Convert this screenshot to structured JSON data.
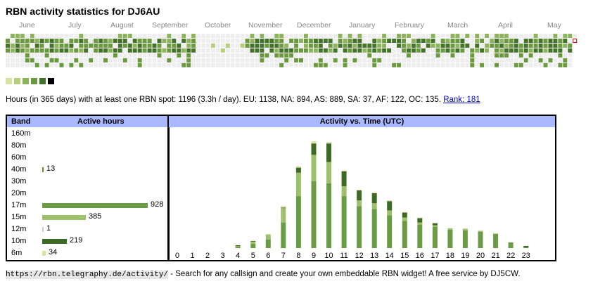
{
  "page": {
    "title": "RBN activity statistics for DJ6AU"
  },
  "heatmap": {
    "months": [
      "June",
      "July",
      "August",
      "September",
      "October",
      "November",
      "December",
      "January",
      "February",
      "March",
      "April",
      "May"
    ],
    "colors": [
      "#eeeeee",
      "#d8e3a0",
      "#b7cf7d",
      "#8db45c",
      "#6a993e",
      "#44742a",
      "#000000"
    ],
    "today_marker_color": "#cc0000"
  },
  "legend": {
    "colors": [
      "#d8e3a0",
      "#b7cf7d",
      "#8db45c",
      "#6a993e",
      "#44742a",
      "#000000"
    ]
  },
  "stats": {
    "text": "Hours (in 365 days) with at least one RBN spot: 1196 (3.3h / day). EU: 1138, NA: 894, AS: 889, SA: 37, AF: 122, OC: 135.",
    "rank_link": "Rank: 181"
  },
  "bands": {
    "header_band": "Band",
    "header_hours": "Active hours",
    "rows": [
      {
        "name": "160m",
        "hours": "",
        "color": ""
      },
      {
        "name": "80m",
        "hours": "",
        "color": ""
      },
      {
        "name": "60m",
        "hours": "",
        "color": ""
      },
      {
        "name": "40m",
        "hours": "13",
        "color": "#8c7a30"
      },
      {
        "name": "30m",
        "hours": "",
        "color": ""
      },
      {
        "name": "20m",
        "hours": "",
        "color": ""
      },
      {
        "name": "17m",
        "hours": "928",
        "color": "#6a9b45"
      },
      {
        "name": "15m",
        "hours": "385",
        "color": "#9ec06b"
      },
      {
        "name": "12m",
        "hours": "1",
        "color": "#cccccc"
      },
      {
        "name": "10m",
        "hours": "219",
        "color": "#3d6b25"
      },
      {
        "name": "6m",
        "hours": "34",
        "color": "#d8e3a0"
      }
    ],
    "max_hours": 928
  },
  "chart_data": {
    "type": "bar",
    "title": "Activity vs. Time (UTC)",
    "stacked": true,
    "categories": [
      "0",
      "1",
      "2",
      "3",
      "4",
      "5",
      "6",
      "7",
      "8",
      "9",
      "10",
      "11",
      "12",
      "13",
      "14",
      "15",
      "16",
      "17",
      "18",
      "19",
      "20",
      "21",
      "22",
      "23"
    ],
    "series": [
      {
        "name": "17m",
        "color": "#6a9b45",
        "values": [
          0,
          0,
          0,
          0,
          2,
          6,
          12,
          36,
          73,
          94,
          91,
          73,
          59,
          55,
          46,
          38,
          33,
          30,
          26,
          25,
          23,
          20,
          8,
          1
        ]
      },
      {
        "name": "15m",
        "color": "#9ec06b",
        "values": [
          0,
          0,
          0,
          0,
          1,
          3,
          7,
          20,
          33,
          37,
          30,
          14,
          8,
          8,
          7,
          5,
          3,
          2,
          2,
          2,
          1,
          0,
          0,
          0
        ]
      },
      {
        "name": "10m",
        "color": "#3d6b25",
        "values": [
          0,
          0,
          0,
          0,
          1,
          1,
          0,
          1,
          7,
          16,
          26,
          21,
          14,
          14,
          13,
          7,
          6,
          3,
          0,
          0,
          0,
          0,
          0,
          2
        ]
      },
      {
        "name": "6m",
        "color": "#d8e3a0",
        "values": [
          0,
          0,
          0,
          0,
          0,
          0,
          1,
          2,
          2,
          3,
          2,
          1,
          1,
          1,
          1,
          0,
          1,
          0,
          0,
          1,
          1,
          1,
          0,
          0
        ]
      }
    ],
    "ylim": [
      0,
      160
    ]
  },
  "footer": {
    "url": "https://rbn.telegraphy.de/activity/",
    "text": " - Search for any callsign and create your own embeddable RBN widget! A free service by DJ5CW."
  }
}
